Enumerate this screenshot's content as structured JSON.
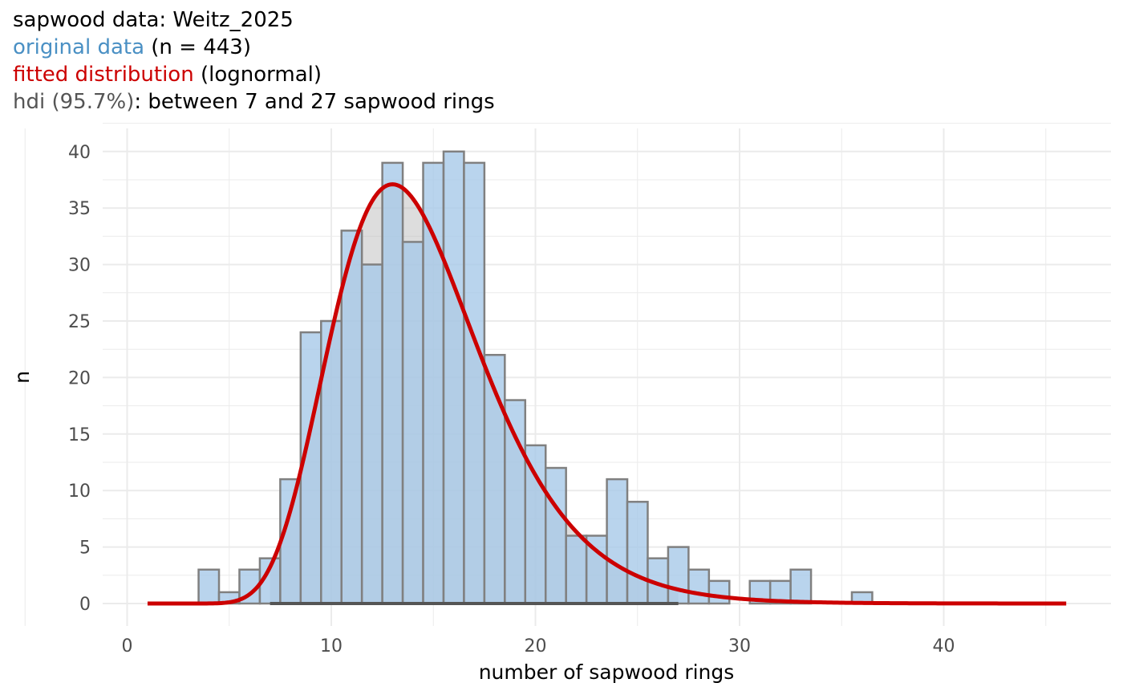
{
  "subtitle": {
    "line1": "sapwood data: Weitz_2025",
    "line2_colored": "original data",
    "line2_rest": " (n = 443)",
    "line3_colored": "fitted distribution",
    "line3_rest": " (lognormal)",
    "line4_colored": "hdi (95.7%)",
    "line4_rest": ": between 7 and 27 sapwood rings"
  },
  "colors": {
    "bars": "#a7c9e8",
    "bar_outline": "#808080",
    "density_fill": "#b3b3b3",
    "curve": "#cc0000",
    "hdi": "#555555",
    "grid": "#ebebeb"
  },
  "chart_data": {
    "type": "bar",
    "xlabel": "number of sapwood rings",
    "ylabel": "n",
    "xlim": [
      0,
      46
    ],
    "ylim": [
      0,
      40
    ],
    "xticks": [
      0,
      10,
      20,
      30,
      40
    ],
    "yticks": [
      0,
      5,
      10,
      15,
      20,
      25,
      30,
      35,
      40
    ],
    "grid": true,
    "histogram": {
      "x": [
        4,
        5,
        6,
        7,
        8,
        9,
        10,
        11,
        12,
        13,
        14,
        15,
        16,
        17,
        18,
        19,
        20,
        21,
        22,
        23,
        24,
        25,
        26,
        27,
        28,
        29,
        31,
        32,
        33,
        36
      ],
      "n": [
        3,
        1,
        3,
        4,
        11,
        24,
        25,
        33,
        30,
        39,
        32,
        39,
        40,
        39,
        22,
        18,
        14,
        12,
        6,
        6,
        11,
        9,
        4,
        5,
        3,
        2,
        2,
        2,
        3,
        1
      ]
    },
    "fitted_distribution": {
      "type": "lognormal",
      "x_range": [
        1,
        46
      ],
      "peak_x": 13,
      "peak_n": 37.1
    },
    "hdi": {
      "lower": 7,
      "upper": 27,
      "level": "95.7%"
    }
  }
}
